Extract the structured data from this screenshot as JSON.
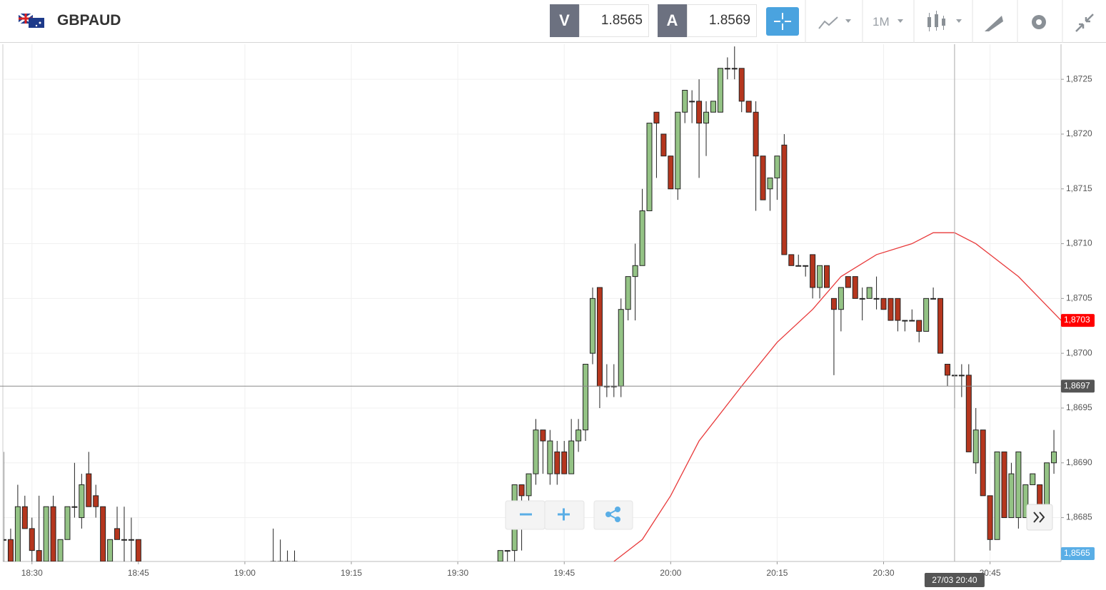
{
  "header": {
    "symbol": "GBPAUD",
    "sell_label": "V",
    "sell_price": "1.8565",
    "buy_label": "A",
    "buy_price": "1.8569",
    "timeframe": "1M"
  },
  "chart_data": {
    "type": "candlestick",
    "x": [
      "18:26",
      "18:27",
      "18:28",
      "18:29",
      "18:30",
      "18:31",
      "18:32",
      "18:33",
      "18:34",
      "18:35",
      "18:36",
      "18:37",
      "18:38",
      "18:39",
      "18:40",
      "18:41",
      "18:42",
      "18:43",
      "18:44",
      "18:45",
      "19:04",
      "19:05",
      "19:06",
      "19:07",
      "19:36",
      "19:37",
      "19:38",
      "19:39",
      "19:40",
      "19:41",
      "19:42",
      "19:43",
      "19:44",
      "19:45",
      "19:46",
      "19:47",
      "19:48",
      "19:49",
      "19:50",
      "19:51",
      "19:52",
      "19:53",
      "19:54",
      "19:55",
      "19:56",
      "19:57",
      "19:58",
      "19:59",
      "20:00",
      "20:01",
      "20:02",
      "20:03",
      "20:04",
      "20:05",
      "20:06",
      "20:07",
      "20:08",
      "20:09",
      "20:10",
      "20:11",
      "20:12",
      "20:13",
      "20:14",
      "20:15",
      "20:16",
      "20:17",
      "20:18",
      "20:19",
      "20:20",
      "20:21",
      "20:22",
      "20:23",
      "20:24",
      "20:25",
      "20:26",
      "20:27",
      "20:28",
      "20:29",
      "20:30",
      "20:31",
      "20:32",
      "20:33",
      "20:34",
      "20:35",
      "20:36",
      "20:37",
      "20:38",
      "20:39",
      "20:40",
      "20:41",
      "20:42",
      "20:43",
      "20:44",
      "20:45",
      "20:46",
      "20:47",
      "20:48",
      "20:49",
      "20:50",
      "20:51",
      "20:52",
      "20:53",
      "20:54"
    ],
    "open": [
      1.8683,
      1.8683,
      1.868,
      1.8686,
      1.8684,
      1.8682,
      1.8681,
      1.8686,
      1.8681,
      1.8683,
      1.8686,
      1.8685,
      1.8689,
      1.8687,
      1.8686,
      1.8681,
      1.8684,
      1.8683,
      1.8683,
      1.8683,
      1.8681,
      1.8681,
      1.8681,
      1.8681,
      1.8681,
      1.8682,
      1.8682,
      1.8688,
      1.8687,
      1.8689,
      1.8693,
      1.8689,
      1.8691,
      1.8691,
      1.8689,
      1.8692,
      1.8693,
      1.87,
      1.8706,
      1.8697,
      1.8697,
      1.8697,
      1.8704,
      1.8707,
      1.8708,
      1.8713,
      1.8722,
      1.872,
      1.8718,
      1.8715,
      1.8722,
      1.8723,
      1.8723,
      1.8721,
      1.8722,
      1.8722,
      1.8726,
      1.8726,
      1.8726,
      1.8723,
      1.8722,
      1.8718,
      1.8715,
      1.8716,
      1.8719,
      1.8709,
      1.8708,
      1.8708,
      1.8709,
      1.8706,
      1.8708,
      1.8705,
      1.8704,
      1.8707,
      1.8707,
      1.8705,
      1.8705,
      1.8705,
      1.8705,
      1.8705,
      1.8705,
      1.8703,
      1.8703,
      1.8703,
      1.8702,
      1.8705,
      1.8705,
      1.8699,
      1.8698,
      1.8698,
      1.8698,
      1.869,
      1.8693,
      1.8687,
      1.8683,
      1.8691,
      1.8685,
      1.8685,
      1.8685,
      1.8688,
      1.8688,
      1.8686,
      1.869
    ],
    "high": [
      1.8691,
      1.8684,
      1.8688,
      1.8687,
      1.8685,
      1.8687,
      1.8686,
      1.8687,
      1.8683,
      1.8686,
      1.869,
      1.8689,
      1.8691,
      1.8688,
      1.8686,
      1.8683,
      1.8686,
      1.8686,
      1.8685,
      1.8683,
      1.8684,
      1.8683,
      1.8682,
      1.8682,
      1.8682,
      1.8682,
      1.8688,
      1.8688,
      1.8689,
      1.8694,
      1.8693,
      1.8693,
      1.8692,
      1.8692,
      1.8694,
      1.8694,
      1.8699,
      1.8706,
      1.8706,
      1.8699,
      1.8699,
      1.8705,
      1.8707,
      1.871,
      1.8715,
      1.8721,
      1.8722,
      1.872,
      1.8718,
      1.8722,
      1.8724,
      1.8724,
      1.8725,
      1.8723,
      1.8723,
      1.8726,
      1.8727,
      1.8728,
      1.8726,
      1.8723,
      1.8723,
      1.8718,
      1.8716,
      1.8718,
      1.872,
      1.8709,
      1.8709,
      1.8708,
      1.8709,
      1.8708,
      1.8708,
      1.8705,
      1.8706,
      1.8707,
      1.8707,
      1.8706,
      1.8706,
      1.8707,
      1.8705,
      1.8705,
      1.8705,
      1.8703,
      1.8704,
      1.8703,
      1.8705,
      1.8706,
      1.8705,
      1.8699,
      1.8698,
      1.8699,
      1.8699,
      1.8695,
      1.8693,
      1.8687,
      1.8691,
      1.8691,
      1.869,
      1.8691,
      1.8688,
      1.8689,
      1.8688,
      1.869,
      1.8693
    ],
    "low": [
      1.8681,
      1.868,
      1.8679,
      1.8684,
      1.8681,
      1.868,
      1.868,
      1.868,
      1.868,
      1.8683,
      1.8685,
      1.8684,
      1.8686,
      1.8685,
      1.868,
      1.868,
      1.8683,
      1.8681,
      1.8681,
      1.868,
      1.868,
      1.868,
      1.868,
      1.868,
      1.868,
      1.8681,
      1.8681,
      1.8682,
      1.8686,
      1.8688,
      1.8689,
      1.8688,
      1.8688,
      1.8689,
      1.8689,
      1.8691,
      1.8692,
      1.8699,
      1.8695,
      1.8696,
      1.8696,
      1.8696,
      1.8703,
      1.8703,
      1.8708,
      1.8713,
      1.8716,
      1.8718,
      1.8715,
      1.8714,
      1.8721,
      1.8721,
      1.8716,
      1.8718,
      1.8722,
      1.8722,
      1.8725,
      1.8725,
      1.8722,
      1.8722,
      1.8713,
      1.8714,
      1.8713,
      1.8714,
      1.8709,
      1.8708,
      1.8708,
      1.8707,
      1.8705,
      1.8705,
      1.8706,
      1.8698,
      1.8702,
      1.8706,
      1.8705,
      1.8703,
      1.8705,
      1.8704,
      1.8704,
      1.8703,
      1.8702,
      1.8702,
      1.8703,
      1.8701,
      1.8702,
      1.8705,
      1.87,
      1.8697,
      1.8695,
      1.8696,
      1.8691,
      1.8689,
      1.8687,
      1.8682,
      1.8683,
      1.8685,
      1.8685,
      1.8684,
      1.8685,
      1.8688,
      1.8686,
      1.8686,
      1.8689
    ],
    "close": [
      1.8683,
      1.8681,
      1.8686,
      1.8684,
      1.8682,
      1.8681,
      1.8686,
      1.8681,
      1.8683,
      1.8686,
      1.8686,
      1.8688,
      1.8686,
      1.8686,
      1.8681,
      1.8683,
      1.8683,
      1.8683,
      1.8683,
      1.8681,
      1.868,
      1.868,
      1.868,
      1.868,
      1.8682,
      1.8682,
      1.8688,
      1.8687,
      1.8689,
      1.8693,
      1.8692,
      1.8692,
      1.8689,
      1.8689,
      1.8692,
      1.8693,
      1.8699,
      1.8705,
      1.8697,
      1.8697,
      1.8697,
      1.8704,
      1.8707,
      1.8708,
      1.8713,
      1.8721,
      1.8721,
      1.8718,
      1.8715,
      1.8722,
      1.8724,
      1.8723,
      1.8721,
      1.8722,
      1.8723,
      1.8726,
      1.8726,
      1.8726,
      1.8723,
      1.8722,
      1.8718,
      1.8714,
      1.8716,
      1.8718,
      1.8709,
      1.8708,
      1.8708,
      1.8708,
      1.8706,
      1.8708,
      1.8706,
      1.8704,
      1.8706,
      1.8706,
      1.8705,
      1.8705,
      1.8706,
      1.8705,
      1.8704,
      1.8703,
      1.8703,
      1.8703,
      1.8703,
      1.8702,
      1.8705,
      1.8705,
      1.87,
      1.8698,
      1.8698,
      1.8698,
      1.8691,
      1.8693,
      1.8687,
      1.8683,
      1.8691,
      1.8685,
      1.8689,
      1.8691,
      1.8688,
      1.8689,
      1.8686,
      1.869,
      1.8691
    ],
    "up_color": "#94c385",
    "down_color": "#b5361e",
    "moving_average": {
      "color": "#e8393a",
      "x": [
        "19:52",
        "19:56",
        "20:00",
        "20:04",
        "20:10",
        "20:15",
        "20:20",
        "20:24",
        "20:29",
        "20:34",
        "20:37",
        "20:40",
        "20:43",
        "20:45",
        "20:49",
        "20:52",
        "20:55"
      ],
      "values": [
        1.8681,
        1.8683,
        1.8687,
        1.8692,
        1.8697,
        1.8701,
        1.8704,
        1.8707,
        1.8709,
        1.871,
        1.8711,
        1.8711,
        1.871,
        1.8709,
        1.8707,
        1.8705,
        1.8703
      ]
    },
    "xlim": [
      "18:26",
      "20:55"
    ],
    "xticks": [
      "18:30",
      "18:45",
      "19:00",
      "19:15",
      "19:30",
      "19:45",
      "20:00",
      "20:15",
      "20:30",
      "20:45"
    ],
    "ylim": [
      1.8681,
      1.87282
    ],
    "yticks": [
      {
        "value": 1.8685,
        "label": "1,8685"
      },
      {
        "value": 1.869,
        "label": "1,8690"
      },
      {
        "value": 1.8695,
        "label": "1,8695"
      },
      {
        "value": 1.87,
        "label": "1,8700"
      },
      {
        "value": 1.8705,
        "label": "1,8705"
      },
      {
        "value": 1.871,
        "label": "1,8710"
      },
      {
        "value": 1.8715,
        "label": "1,8715"
      },
      {
        "value": 1.872,
        "label": "1,8720"
      },
      {
        "value": 1.8725,
        "label": "1,8725"
      }
    ],
    "grid": true,
    "crosshair": {
      "x": "20:40",
      "x_label": "27/03 20:40",
      "y": {
        "value": 1.8697,
        "label": "1,8697"
      }
    },
    "price_tags": [
      {
        "value": 1.8703,
        "label": "1,8703",
        "color": "#ff0000"
      },
      {
        "value": 1.8565,
        "label": "1,8565",
        "color": "#5aaee6"
      }
    ]
  }
}
